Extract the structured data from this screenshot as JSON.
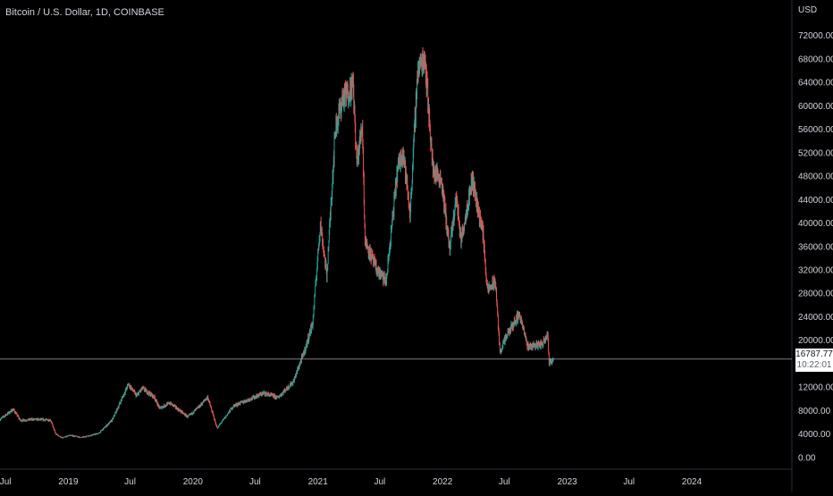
{
  "chart_data": {
    "type": "candlestick",
    "title": "Bitcoin / U.S. Dollar, 1D, COINBASE",
    "currency": "USD",
    "y_ticks": [
      "0.00",
      "4000.00",
      "8000.00",
      "12000.00",
      "16000.00",
      "20000.00",
      "24000.00",
      "28000.00",
      "32000.00",
      "36000.00",
      "40000.00",
      "44000.00",
      "48000.00",
      "52000.00",
      "56000.00",
      "60000.00",
      "64000.00",
      "68000.00",
      "72000.00"
    ],
    "y_range": [
      -2000,
      75000
    ],
    "x_ticks": [
      "Jul",
      "2019",
      "Jul",
      "2020",
      "Jul",
      "2021",
      "Jul",
      "2022",
      "Jul",
      "2023",
      "Jul",
      "2024"
    ],
    "x_range": [
      "2018-06-15",
      "2024-10-20"
    ],
    "last_price": "16787.77",
    "countdown": "10:22:01",
    "up_color": "#26a69a",
    "down_color": "#ef5350",
    "series": [
      {
        "date": "2018-06-15",
        "close": 6500
      },
      {
        "date": "2018-07-24",
        "close": 8200
      },
      {
        "date": "2018-08-14",
        "close": 6300
      },
      {
        "date": "2018-09-20",
        "close": 6500
      },
      {
        "date": "2018-11-10",
        "close": 6400
      },
      {
        "date": "2018-11-25",
        "close": 4000
      },
      {
        "date": "2018-12-15",
        "close": 3300
      },
      {
        "date": "2019-01-05",
        "close": 3800
      },
      {
        "date": "2019-02-08",
        "close": 3400
      },
      {
        "date": "2019-03-31",
        "close": 4100
      },
      {
        "date": "2019-05-10",
        "close": 6400
      },
      {
        "date": "2019-06-26",
        "close": 12500
      },
      {
        "date": "2019-07-20",
        "close": 10500
      },
      {
        "date": "2019-08-06",
        "close": 11800
      },
      {
        "date": "2019-09-10",
        "close": 10300
      },
      {
        "date": "2019-09-25",
        "close": 8400
      },
      {
        "date": "2019-10-26",
        "close": 9300
      },
      {
        "date": "2019-12-17",
        "close": 6900
      },
      {
        "date": "2020-01-20",
        "close": 8700
      },
      {
        "date": "2020-02-13",
        "close": 10300
      },
      {
        "date": "2020-03-12",
        "close": 5000
      },
      {
        "date": "2020-04-29",
        "close": 8800
      },
      {
        "date": "2020-06-01",
        "close": 9600
      },
      {
        "date": "2020-07-27",
        "close": 11000
      },
      {
        "date": "2020-09-05",
        "close": 10200
      },
      {
        "date": "2020-10-21",
        "close": 12900
      },
      {
        "date": "2020-11-25",
        "close": 18500
      },
      {
        "date": "2020-12-17",
        "close": 23000
      },
      {
        "date": "2021-01-08",
        "close": 40000
      },
      {
        "date": "2021-01-27",
        "close": 31000
      },
      {
        "date": "2021-02-21",
        "close": 56000
      },
      {
        "date": "2021-03-13",
        "close": 61000
      },
      {
        "date": "2021-04-14",
        "close": 63500
      },
      {
        "date": "2021-04-25",
        "close": 50000
      },
      {
        "date": "2021-05-11",
        "close": 57000
      },
      {
        "date": "2021-05-19",
        "close": 37000
      },
      {
        "date": "2021-06-22",
        "close": 32000
      },
      {
        "date": "2021-07-20",
        "close": 30000
      },
      {
        "date": "2021-08-22",
        "close": 49000
      },
      {
        "date": "2021-09-07",
        "close": 52500
      },
      {
        "date": "2021-09-28",
        "close": 41500
      },
      {
        "date": "2021-10-20",
        "close": 66000
      },
      {
        "date": "2021-11-10",
        "close": 68500
      },
      {
        "date": "2021-12-04",
        "close": 49000
      },
      {
        "date": "2021-12-28",
        "close": 47500
      },
      {
        "date": "2022-01-22",
        "close": 35500
      },
      {
        "date": "2022-02-10",
        "close": 44500
      },
      {
        "date": "2022-02-24",
        "close": 37000
      },
      {
        "date": "2022-03-29",
        "close": 47500
      },
      {
        "date": "2022-04-30",
        "close": 38000
      },
      {
        "date": "2022-05-12",
        "close": 28500
      },
      {
        "date": "2022-06-05",
        "close": 30000
      },
      {
        "date": "2022-06-18",
        "close": 18000
      },
      {
        "date": "2022-07-10",
        "close": 21000
      },
      {
        "date": "2022-08-14",
        "close": 24500
      },
      {
        "date": "2022-09-07",
        "close": 19000
      },
      {
        "date": "2022-10-20",
        "close": 19300
      },
      {
        "date": "2022-11-05",
        "close": 21300
      },
      {
        "date": "2022-11-09",
        "close": 16000
      },
      {
        "date": "2022-11-22",
        "close": 16787
      }
    ]
  }
}
